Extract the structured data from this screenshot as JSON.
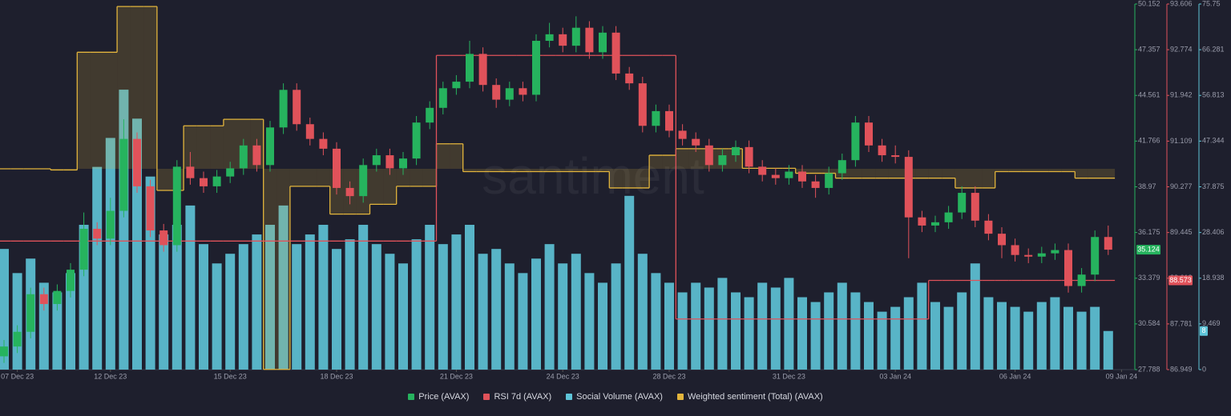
{
  "chart_data": {
    "type": "candlestick",
    "watermark": "santiment",
    "xticks": [
      {
        "value": 1,
        "label": "07 Dec 23"
      },
      {
        "value": 8,
        "label": "12 Dec 23"
      },
      {
        "value": 17,
        "label": "15 Dec 23"
      },
      {
        "value": 25,
        "label": "18 Dec 23"
      },
      {
        "value": 34,
        "label": "21 Dec 23"
      },
      {
        "value": 42,
        "label": "24 Dec 23"
      },
      {
        "value": 50,
        "label": "28 Dec 23"
      },
      {
        "value": 59,
        "label": "31 Dec 23"
      },
      {
        "value": 67,
        "label": "03 Jan 24"
      },
      {
        "value": 76,
        "label": "06 Jan 24"
      },
      {
        "value": 84,
        "label": "09 Jan 24"
      }
    ],
    "ylim": [
      27.788,
      50.152
    ],
    "yticks": [
      27.788,
      30.584,
      33.379,
      36.175,
      38.97,
      41.766,
      44.561,
      47.357,
      50.152
    ],
    "y2lim": [
      86.949,
      93.606
    ],
    "y2ticks": [
      86.949,
      87.781,
      88.613,
      89.445,
      90.277,
      91.109,
      91.942,
      92.774,
      93.606
    ],
    "y3lim": [
      0,
      75.75
    ],
    "y3ticks": [
      0,
      9.469,
      18.938,
      28.406,
      37.875,
      47.344,
      56.813,
      66.281,
      75.75
    ],
    "series": [
      {
        "name": "Price (AVAX)",
        "type": "candlestick",
        "color": "#26b35e",
        "down_color": "#e0525a",
        "axis": "y",
        "open": [
          28.6,
          29.2,
          30.1,
          32.4,
          31.8,
          32.6,
          33.9,
          36.4,
          35.8,
          37.5,
          41.9,
          39.0,
          36.3,
          35.4,
          40.2,
          39.5,
          39.0,
          39.6,
          40.1,
          41.5,
          40.3,
          42.6,
          44.9,
          42.8,
          41.9,
          41.3,
          38.9,
          38.4,
          40.3,
          40.9,
          40.1,
          40.7,
          42.9,
          43.8,
          45.0,
          45.4,
          47.1,
          45.2,
          44.3,
          45.0,
          44.6,
          47.9,
          48.3,
          47.6,
          48.7,
          47.2,
          48.4,
          45.9,
          45.3,
          42.7,
          43.6,
          42.4,
          41.9,
          41.5,
          40.3,
          40.9,
          41.4,
          40.2,
          39.7,
          39.5,
          39.9,
          39.3,
          38.9,
          39.8,
          40.6,
          42.9,
          41.5,
          40.9,
          40.8,
          37.1,
          36.6,
          36.8,
          37.4,
          38.6,
          36.9,
          36.1,
          35.4,
          34.8,
          34.7,
          34.9,
          35.1,
          32.9,
          33.6,
          35.9
        ],
        "high": [
          29.6,
          30.5,
          32.8,
          32.8,
          33.0,
          34.3,
          37.4,
          36.8,
          38.3,
          43.1,
          42.3,
          39.4,
          36.7,
          40.6,
          41.1,
          39.9,
          40.0,
          40.5,
          41.9,
          41.9,
          43.0,
          45.3,
          45.3,
          43.2,
          42.3,
          41.7,
          39.3,
          40.7,
          41.3,
          41.3,
          41.1,
          43.3,
          44.2,
          45.4,
          45.8,
          47.9,
          47.5,
          45.6,
          45.4,
          45.4,
          48.3,
          49.0,
          48.7,
          49.4,
          49.1,
          48.8,
          48.8,
          46.3,
          45.7,
          44.0,
          44.0,
          42.8,
          42.3,
          41.9,
          41.3,
          41.8,
          41.8,
          40.6,
          40.1,
          40.3,
          40.3,
          39.7,
          40.2,
          41.0,
          43.3,
          43.3,
          41.9,
          41.5,
          41.2,
          37.5,
          37.2,
          37.8,
          39.0,
          39.0,
          37.3,
          36.5,
          35.8,
          35.2,
          35.3,
          35.5,
          35.5,
          34.0,
          36.3,
          36.6
        ],
        "low": [
          28.2,
          28.8,
          29.7,
          31.4,
          31.4,
          32.2,
          33.5,
          35.4,
          35.4,
          37.1,
          38.6,
          35.9,
          35.0,
          35.0,
          39.1,
          38.6,
          38.6,
          39.2,
          39.7,
          39.9,
          39.9,
          42.2,
          42.4,
          41.5,
          40.9,
          38.5,
          37.9,
          38.0,
          39.9,
          39.7,
          39.7,
          40.3,
          42.5,
          43.4,
          44.6,
          45.0,
          44.8,
          43.8,
          43.9,
          44.2,
          44.2,
          47.5,
          47.2,
          47.2,
          46.8,
          46.8,
          45.5,
          44.9,
          42.3,
          42.3,
          42.0,
          41.5,
          41.1,
          39.9,
          39.9,
          40.5,
          39.8,
          39.3,
          39.1,
          39.1,
          38.9,
          38.3,
          38.5,
          39.4,
          40.2,
          41.1,
          40.5,
          40.4,
          34.6,
          36.2,
          36.2,
          36.4,
          37.0,
          36.5,
          35.7,
          34.6,
          34.4,
          34.3,
          34.3,
          34.5,
          32.5,
          32.5,
          33.2,
          34.8
        ],
        "close": [
          29.2,
          30.1,
          32.4,
          31.8,
          32.6,
          33.9,
          36.4,
          35.8,
          37.5,
          41.9,
          39.0,
          36.3,
          35.4,
          40.2,
          39.5,
          39.0,
          39.6,
          40.1,
          41.5,
          40.3,
          42.6,
          44.9,
          42.8,
          41.9,
          41.3,
          38.9,
          38.4,
          40.3,
          40.9,
          40.1,
          40.7,
          42.9,
          43.8,
          45.0,
          45.4,
          47.1,
          45.2,
          44.3,
          45.0,
          44.6,
          47.9,
          48.3,
          47.6,
          48.7,
          47.2,
          48.4,
          45.9,
          45.3,
          42.7,
          43.6,
          42.4,
          41.9,
          41.5,
          40.3,
          40.9,
          41.4,
          40.2,
          39.7,
          39.5,
          39.9,
          39.3,
          38.9,
          39.8,
          40.6,
          42.9,
          41.5,
          40.9,
          40.8,
          37.1,
          36.6,
          36.8,
          37.4,
          38.6,
          36.9,
          36.1,
          35.4,
          34.8,
          34.7,
          34.9,
          35.1,
          32.9,
          33.6,
          35.9,
          35.124
        ]
      },
      {
        "name": "RSI 7d (AVAX)",
        "type": "step",
        "color": "#e0525a",
        "axis": "y2",
        "values": [
          89.29,
          89.29,
          89.29,
          89.29,
          89.29,
          89.29,
          89.29,
          89.29,
          89.29,
          89.29,
          89.29,
          89.29,
          89.29,
          89.29,
          89.29,
          89.29,
          89.29,
          89.29,
          89.29,
          89.29,
          89.29,
          89.29,
          89.29,
          89.29,
          89.29,
          89.29,
          89.29,
          89.29,
          89.29,
          89.29,
          89.29,
          89.29,
          89.29,
          92.67,
          92.67,
          92.67,
          92.67,
          92.67,
          92.67,
          92.67,
          92.67,
          92.67,
          92.67,
          92.67,
          92.67,
          92.67,
          92.67,
          92.67,
          92.67,
          92.67,
          92.67,
          87.87,
          87.87,
          87.87,
          87.87,
          87.87,
          87.87,
          87.87,
          87.87,
          87.87,
          87.87,
          87.87,
          87.87,
          87.87,
          87.87,
          87.87,
          87.87,
          87.87,
          87.87,
          87.87,
          88.573,
          88.573,
          88.573,
          88.573,
          88.573,
          88.573,
          88.573,
          88.573,
          88.573,
          88.573,
          88.573,
          88.573,
          88.573,
          88.573
        ]
      },
      {
        "name": "Social Volume (AVAX)",
        "type": "bar",
        "color": "#5ec4d8",
        "axis": "y3",
        "values": [
          25,
          20,
          23,
          18,
          16,
          20,
          30,
          42,
          48,
          58,
          52,
          40,
          28,
          30,
          34,
          26,
          22,
          24,
          26,
          28,
          30,
          34,
          26,
          28,
          30,
          25,
          27,
          30,
          26,
          24,
          22,
          27,
          30,
          26,
          28,
          30,
          24,
          25,
          22,
          20,
          23,
          26,
          22,
          24,
          20,
          18,
          22,
          36,
          24,
          20,
          18,
          16,
          18,
          17,
          19,
          16,
          15,
          18,
          17,
          19,
          15,
          14,
          16,
          18,
          16,
          14,
          12,
          13,
          15,
          18,
          14,
          13,
          16,
          22,
          15,
          14,
          13,
          12,
          14,
          15,
          13,
          12,
          13,
          8
        ]
      },
      {
        "name": "Weighted sentiment (Total) (AVAX)",
        "type": "step",
        "color": "#e3b53c",
        "axis": "y",
        "values": [
          40.07,
          40.07,
          40.07,
          40.07,
          40.0,
          40.0,
          47.2,
          47.2,
          47.2,
          50.0,
          50.0,
          50.0,
          38.75,
          38.75,
          42.7,
          42.7,
          42.7,
          43.1,
          43.1,
          43.1,
          27.8,
          27.8,
          39.0,
          39.0,
          39.0,
          37.3,
          37.3,
          37.3,
          37.9,
          37.9,
          39.0,
          39.0,
          39.0,
          41.6,
          41.6,
          39.9,
          39.9,
          39.9,
          39.9,
          39.9,
          39.9,
          39.9,
          39.9,
          39.9,
          39.9,
          39.9,
          38.9,
          38.9,
          38.9,
          40.9,
          40.9,
          41.3,
          41.3,
          41.3,
          41.3,
          41.3,
          40.1,
          40.1,
          40.1,
          40.1,
          39.8,
          39.8,
          39.8,
          39.5,
          39.5,
          39.5,
          39.5,
          39.5,
          39.5,
          39.5,
          39.5,
          39.5,
          38.9,
          38.9,
          38.9,
          39.9,
          39.9,
          39.9,
          39.9,
          39.9,
          39.9,
          39.5,
          39.5,
          39.5
        ]
      }
    ]
  }
}
